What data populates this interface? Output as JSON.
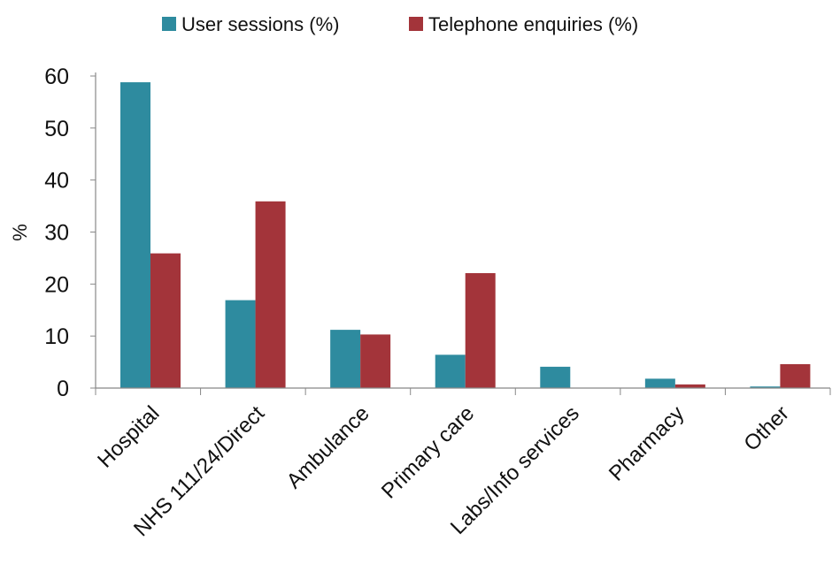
{
  "chart_data": {
    "type": "bar",
    "title": "",
    "xlabel": "",
    "ylabel": "%",
    "ylim": [
      0,
      60
    ],
    "yticks": [
      0,
      10,
      20,
      30,
      40,
      50,
      60
    ],
    "grid": false,
    "legend_position": "top-center",
    "categories": [
      "Hospital",
      "NHS 111/24/Direct",
      "Ambulance",
      "Primary care",
      "Labs/Info services",
      "Pharmacy",
      "Other"
    ],
    "series": [
      {
        "name": "User sessions (%)",
        "color": "#2e8b9f",
        "values": [
          58.8,
          16.9,
          11.2,
          6.4,
          4.1,
          1.8,
          0.3
        ]
      },
      {
        "name": "Telephone enquiries (%)",
        "color": "#a3343a",
        "values": [
          25.9,
          35.9,
          10.3,
          22.1,
          0.0,
          0.7,
          4.6
        ]
      }
    ]
  }
}
